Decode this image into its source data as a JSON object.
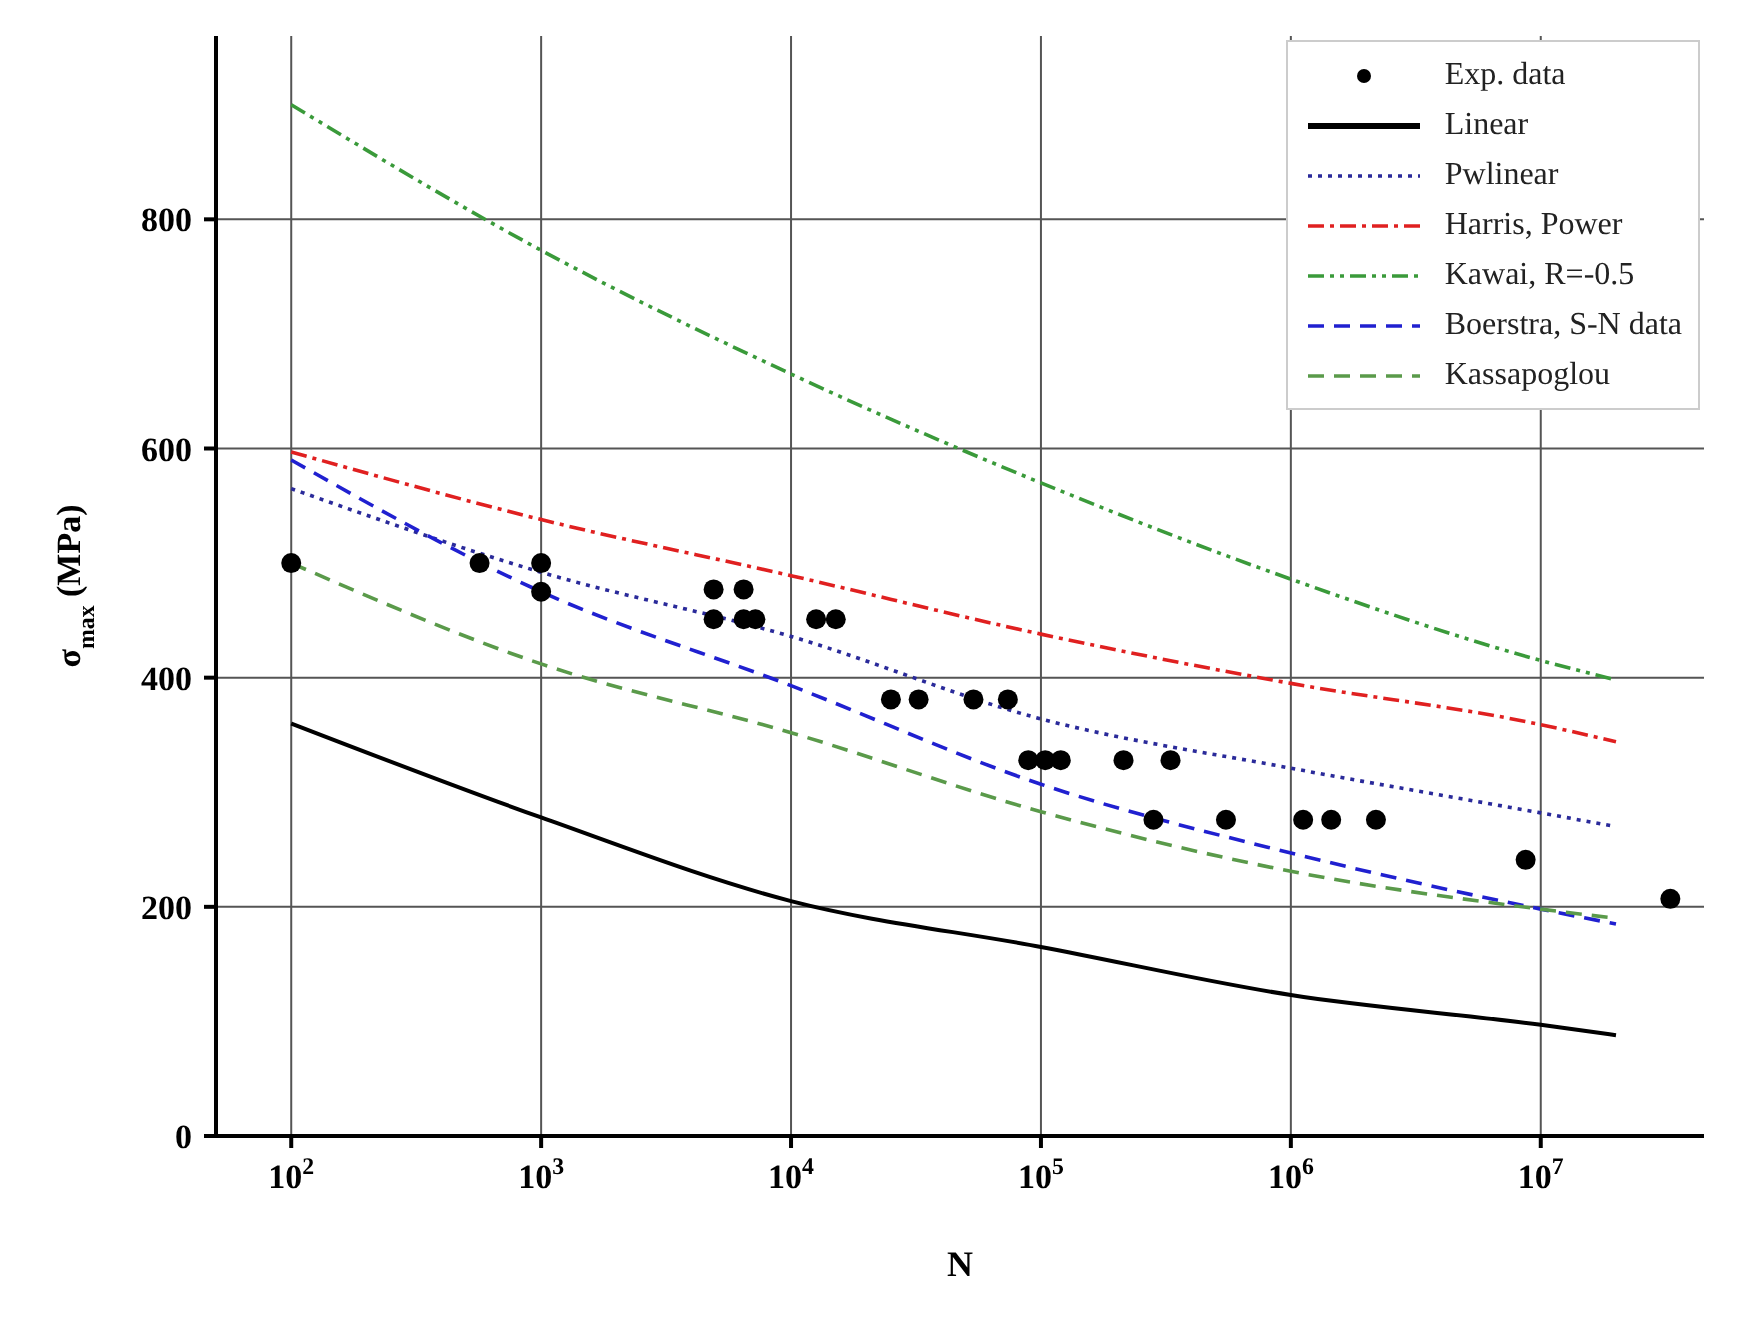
{
  "chart_data": {
    "type": "line",
    "xlabel": "N",
    "ylabel": "σ$_{max}$ (MPa)",
    "log": "x",
    "xlim": [
      50,
      45000000
    ],
    "ylim": [
      0,
      960
    ],
    "xticks": [
      {
        "value": 100,
        "label": "10$^{2}$"
      },
      {
        "value": 1000,
        "label": "10$^{3}$"
      },
      {
        "value": 10000,
        "label": "10$^{4}$"
      },
      {
        "value": 100000,
        "label": "10$^{5}$"
      },
      {
        "value": 1000000,
        "label": "10$^{6}$"
      },
      {
        "value": 10000000,
        "label": "10$^{7}$"
      }
    ],
    "yticks": [
      0,
      200,
      400,
      600,
      800
    ],
    "grid": true,
    "legend": "top right",
    "series": [
      {
        "name": "Exp. data",
        "type": "scatter",
        "marker": "circle",
        "color": "#000000",
        "x": [
          100,
          567,
          1000,
          1000,
          4900,
          6460,
          4900,
          6460,
          7200,
          12600,
          15100,
          25100,
          32400,
          53700,
          73700,
          89000,
          104000,
          120000,
          214000,
          330000,
          282000,
          550000,
          1120000,
          1450000,
          2190000,
          8700000,
          33000000
        ],
        "values": [
          500,
          500,
          500,
          475,
          477,
          477,
          451,
          451,
          451,
          451,
          451,
          381,
          381,
          381,
          381,
          328,
          328,
          328,
          328,
          328,
          276,
          276,
          276,
          276,
          276,
          241,
          207
        ]
      },
      {
        "name": "Linear",
        "type": "line",
        "line_style": "solid",
        "color": "#000000",
        "x": [
          100,
          1000,
          10000,
          100000,
          1000000,
          10000000,
          20000000
        ],
        "values": [
          360,
          278,
          205,
          165,
          123,
          97,
          88
        ]
      },
      {
        "name": "Pwlinear",
        "type": "line",
        "line_style": "dotted",
        "color": "#2a2a9a",
        "x": [
          100,
          1000,
          10000,
          100000,
          1000000,
          10000000,
          20000000
        ],
        "values": [
          565,
          492,
          436,
          364,
          321,
          282,
          270
        ]
      },
      {
        "name": "Harris, Power",
        "type": "line",
        "line_style": "dashdot",
        "color": "#e02020",
        "x": [
          100,
          1000,
          10000,
          100000,
          1000000,
          10000000,
          20000000
        ],
        "values": [
          597,
          538,
          489,
          438,
          395,
          359,
          344
        ]
      },
      {
        "name": "Kawai, R=-0.5",
        "type": "line",
        "line_style": "dashdotdot",
        "color": "#3a9a3a",
        "x": [
          100,
          1000,
          10000,
          100000,
          1000000,
          10000000,
          20000000
        ],
        "values": [
          900,
          773,
          665,
          570,
          486,
          415,
          398
        ]
      },
      {
        "name": "Boerstra, S-N data",
        "type": "line",
        "line_style": "dashed",
        "color": "#2020d0",
        "x": [
          100,
          1000,
          10000,
          100000,
          1000000,
          10000000,
          20000000
        ],
        "values": [
          590,
          475,
          393,
          307,
          247,
          198,
          185
        ]
      },
      {
        "name": "Kassapoglou",
        "type": "line",
        "line_style": "dashed",
        "color": "#5a9a4a",
        "x": [
          100,
          1000,
          10000,
          100000,
          1000000,
          10000000,
          20000000
        ],
        "values": [
          500,
          412,
          352,
          283,
          231,
          198,
          190
        ]
      }
    ]
  }
}
